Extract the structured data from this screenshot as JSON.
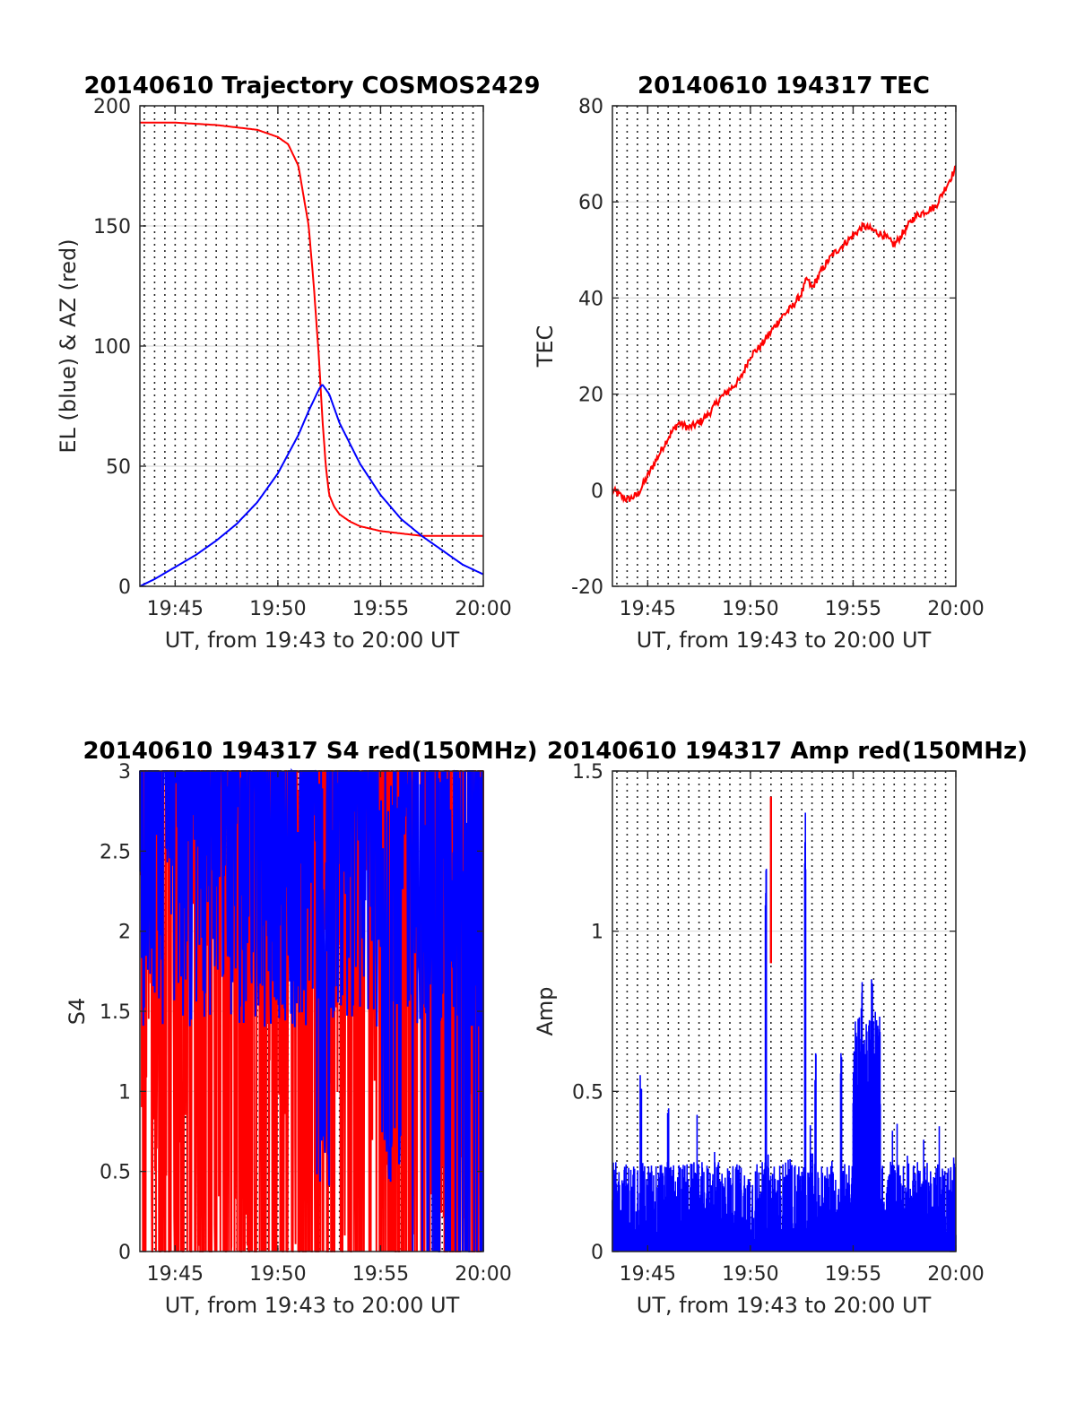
{
  "colors": {
    "red": "#ff0000",
    "blue": "#0000ff",
    "axis": "#262626",
    "grid": "#dcdcdc"
  },
  "chart_data": [
    {
      "type": "line",
      "title": "20140610 Trajectory COSMOS2429",
      "xlabel": "UT, from 19:43 to 20:00 UT",
      "ylabel": "EL (blue) & AZ (red)",
      "xlim": [
        "19:43:17",
        "20:00:00"
      ],
      "ylim": [
        0,
        200
      ],
      "xticks": [
        "19:45",
        "19:50",
        "19:55",
        "20:00"
      ],
      "yticks": [
        "0",
        "50",
        "100",
        "150",
        "200"
      ],
      "grid": "dotted vertical lines every 30 s, horizontal grid at y ticks",
      "series": [
        {
          "color": "#0000ff",
          "x": [
            "19:43:17",
            "19:44:00",
            "19:45:00",
            "19:46:00",
            "19:47:00",
            "19:48:00",
            "19:49:00",
            "19:50:00",
            "19:51:00",
            "19:51:30",
            "19:52:00",
            "19:52:10",
            "19:52:30",
            "19:53:00",
            "19:54:00",
            "19:55:00",
            "19:56:00",
            "19:57:00",
            "19:58:00",
            "19:59:00",
            "20:00:00"
          ],
          "values": [
            0,
            3,
            8,
            13,
            19,
            26,
            35,
            47,
            63,
            73,
            82,
            84,
            80,
            68,
            51,
            38,
            28,
            21,
            15,
            9,
            5
          ]
        },
        {
          "color": "#ff0000",
          "x": [
            "19:43:17",
            "19:45:00",
            "19:47:00",
            "19:48:00",
            "19:49:00",
            "19:50:00",
            "19:50:30",
            "19:51:00",
            "19:51:30",
            "19:51:45",
            "19:52:00",
            "19:52:10",
            "19:52:20",
            "19:52:30",
            "19:52:45",
            "19:53:00",
            "19:53:30",
            "19:54:00",
            "19:55:00",
            "19:56:00",
            "19:57:00",
            "20:00:00"
          ],
          "values": [
            193,
            193,
            192,
            191,
            190,
            187,
            184,
            175,
            150,
            125,
            95,
            70,
            50,
            38,
            33,
            30,
            27,
            25,
            23,
            22,
            21,
            21
          ]
        }
      ]
    },
    {
      "type": "line",
      "title": "20140610 194317 TEC",
      "xlabel": "UT, from 19:43 to 20:00 UT",
      "ylabel": "TEC",
      "xlim": [
        "19:43:17",
        "20:00:00"
      ],
      "ylim": [
        -20,
        80
      ],
      "xticks": [
        "19:45",
        "19:50",
        "19:55",
        "20:00"
      ],
      "yticks": [
        "-20",
        "0",
        "20",
        "40",
        "60",
        "80"
      ],
      "series": [
        {
          "color": "#ff0000",
          "x": [
            "19:43:17",
            "19:44:00",
            "19:44:30",
            "19:45:00",
            "19:45:30",
            "19:46:00",
            "19:46:30",
            "19:47:00",
            "19:47:30",
            "19:48:00",
            "19:48:30",
            "19:49:00",
            "19:49:30",
            "19:50:00",
            "19:50:30",
            "19:51:00",
            "19:51:30",
            "19:52:00",
            "19:52:30",
            "19:52:45",
            "19:53:00",
            "19:53:30",
            "19:54:00",
            "19:54:30",
            "19:55:00",
            "19:55:30",
            "19:56:00",
            "19:56:30",
            "19:57:00",
            "19:57:30",
            "19:58:00",
            "19:58:30",
            "19:59:00",
            "19:59:30",
            "20:00:00"
          ],
          "values": [
            0,
            -2,
            -1,
            3,
            7,
            11,
            14,
            13,
            14,
            16,
            19,
            21,
            23,
            28,
            30,
            33,
            36,
            38,
            41,
            44,
            42,
            46,
            49,
            51,
            53,
            55,
            54,
            53,
            51,
            54,
            57,
            58,
            59,
            63,
            67
          ]
        }
      ]
    },
    {
      "type": "line",
      "title": "20140610 194317 S4 red(150MHz)",
      "xlabel": "UT, from 19:43 to 20:00 UT",
      "ylabel": "S4",
      "xlim": [
        "19:43:17",
        "20:00:00"
      ],
      "ylim": [
        0,
        3
      ],
      "xticks": [
        "19:45",
        "19:50",
        "19:55",
        "20:00"
      ],
      "yticks": [
        "0",
        "0.5",
        "1",
        "1.5",
        "2",
        "2.5",
        "3"
      ],
      "series": [
        {
          "color": "#ff0000",
          "note_values": "dense noise clipped at 3 with frequent drops to 0"
        },
        {
          "color": "#0000ff",
          "note_values": "dense noise mostly between 1.5 and 3, drops to ~0.5 near 19:52 and 19:55-19:56 and to 0 after 19:56"
        }
      ]
    },
    {
      "type": "line",
      "title": "20140610 194317 Amp red(150MHz)",
      "xlabel": "UT, from 19:43 to 20:00 UT",
      "ylabel": "Amp",
      "xlim": [
        "19:43:17",
        "20:00:00"
      ],
      "ylim": [
        0,
        1.5
      ],
      "xticks": [
        "19:45",
        "19:50",
        "19:55",
        "20:00"
      ],
      "yticks": [
        "0",
        "0.5",
        "1",
        "1.5"
      ],
      "series": [
        {
          "color": "#ff0000",
          "peak": {
            "x": "19:51:00",
            "value": 1.42
          }
        },
        {
          "color": "#0000ff",
          "peaks": [
            {
              "x": "19:50:45",
              "value": 1.24
            },
            {
              "x": "19:52:40",
              "value": 1.37
            },
            {
              "x": "19:53:10",
              "value": 0.62
            },
            {
              "x": "19:54:25",
              "value": 0.65
            },
            {
              "x": "19:55:25",
              "value": 0.85
            },
            {
              "x": "19:55:55",
              "value": 0.86
            },
            {
              "x": "19:44:40",
              "value": 0.57
            },
            {
              "x": "19:46:00",
              "value": 0.46
            }
          ]
        }
      ]
    }
  ]
}
